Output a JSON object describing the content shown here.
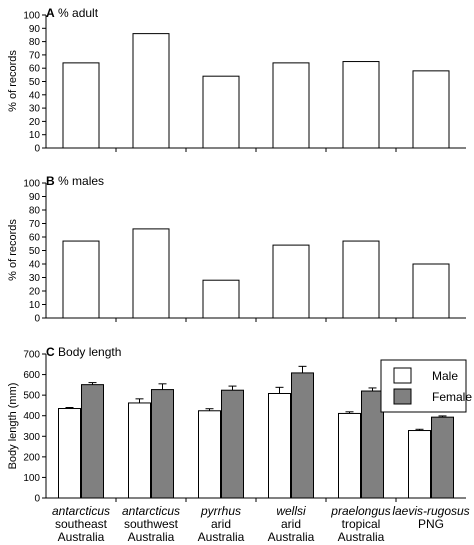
{
  "categories": [
    {
      "species": "antarcticus",
      "line2": "southeast",
      "line3": "Australia"
    },
    {
      "species": "antarcticus",
      "line2": "southwest",
      "line3": "Australia"
    },
    {
      "species": "pyrrhus",
      "line2": "arid",
      "line3": "Australia"
    },
    {
      "species": "wellsi",
      "line2": "arid",
      "line3": "Australia"
    },
    {
      "species": "praelongus",
      "line2": "tropical",
      "line3": "Australia"
    },
    {
      "species": "laevis-rugosus",
      "line2": "PNG",
      "line3": ""
    }
  ],
  "chart_data": [
    {
      "type": "bar",
      "panel": "A",
      "title": "% adult",
      "ylabel": "% of records",
      "ylim": [
        0,
        100
      ],
      "yticks": [
        0,
        10,
        20,
        30,
        40,
        50,
        60,
        70,
        80,
        90,
        100
      ],
      "values": [
        64,
        86,
        54,
        64,
        65,
        58
      ],
      "colors": {
        "bar": "#ffffff",
        "edge": "#000000"
      }
    },
    {
      "type": "bar",
      "panel": "B",
      "title": "% males",
      "ylabel": "% of records",
      "ylim": [
        0,
        100
      ],
      "yticks": [
        0,
        10,
        20,
        30,
        40,
        50,
        60,
        70,
        80,
        90,
        100
      ],
      "values": [
        57,
        66,
        28,
        54,
        57,
        40
      ],
      "colors": {
        "bar": "#ffffff",
        "edge": "#000000"
      }
    },
    {
      "type": "bar",
      "panel": "C",
      "title": "Body length",
      "ylabel": "Body length (mm)",
      "ylim": [
        0,
        700
      ],
      "yticks": [
        0,
        100,
        200,
        300,
        400,
        500,
        600,
        700
      ],
      "legend_position": "top-right",
      "series": [
        {
          "name": "Male",
          "color": "#ffffff",
          "values": [
            435,
            462,
            424,
            508,
            411,
            328
          ],
          "errors": [
            5,
            20,
            10,
            30,
            8,
            6
          ]
        },
        {
          "name": "Female",
          "color": "#808080",
          "values": [
            551,
            527,
            524,
            608,
            520,
            393
          ],
          "errors": [
            10,
            28,
            20,
            32,
            15,
            6
          ]
        }
      ]
    }
  ]
}
